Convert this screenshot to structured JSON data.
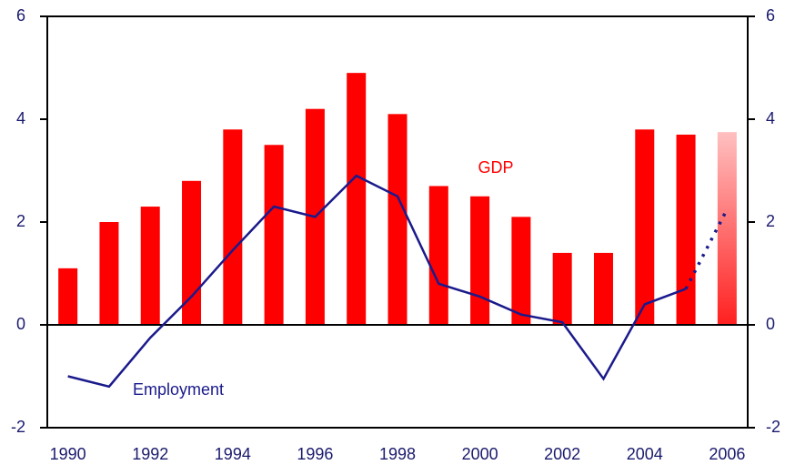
{
  "chart_data": {
    "type": "bar_line",
    "categories": [
      "1990",
      null,
      "1992",
      null,
      "1994",
      null,
      "1996",
      null,
      "1998",
      null,
      "2000",
      null,
      "2002",
      null,
      "2004",
      null,
      "2006"
    ],
    "series": [
      {
        "name": "GDP",
        "type": "bar",
        "color": "#ff0000",
        "values": [
          1.1,
          2.0,
          2.3,
          2.8,
          3.8,
          3.5,
          4.2,
          4.9,
          4.1,
          2.7,
          2.5,
          2.1,
          1.4,
          1.4,
          3.8,
          3.7,
          3.75
        ]
      },
      {
        "name": "Employment",
        "type": "line",
        "color": "#1a1a8c",
        "values": [
          -1.0,
          -1.2,
          -0.25,
          0.55,
          1.45,
          2.3,
          2.1,
          2.9,
          2.5,
          0.8,
          0.55,
          0.2,
          0.05,
          -1.05,
          0.4,
          0.7,
          2.25
        ]
      }
    ],
    "forecast_start": 16,
    "ylim": [
      -2,
      6
    ],
    "yticks": [
      -2,
      0,
      2,
      4,
      6
    ],
    "y2lim": [
      -2,
      6
    ],
    "y2ticks": [
      -2,
      0,
      2,
      4,
      6
    ]
  }
}
